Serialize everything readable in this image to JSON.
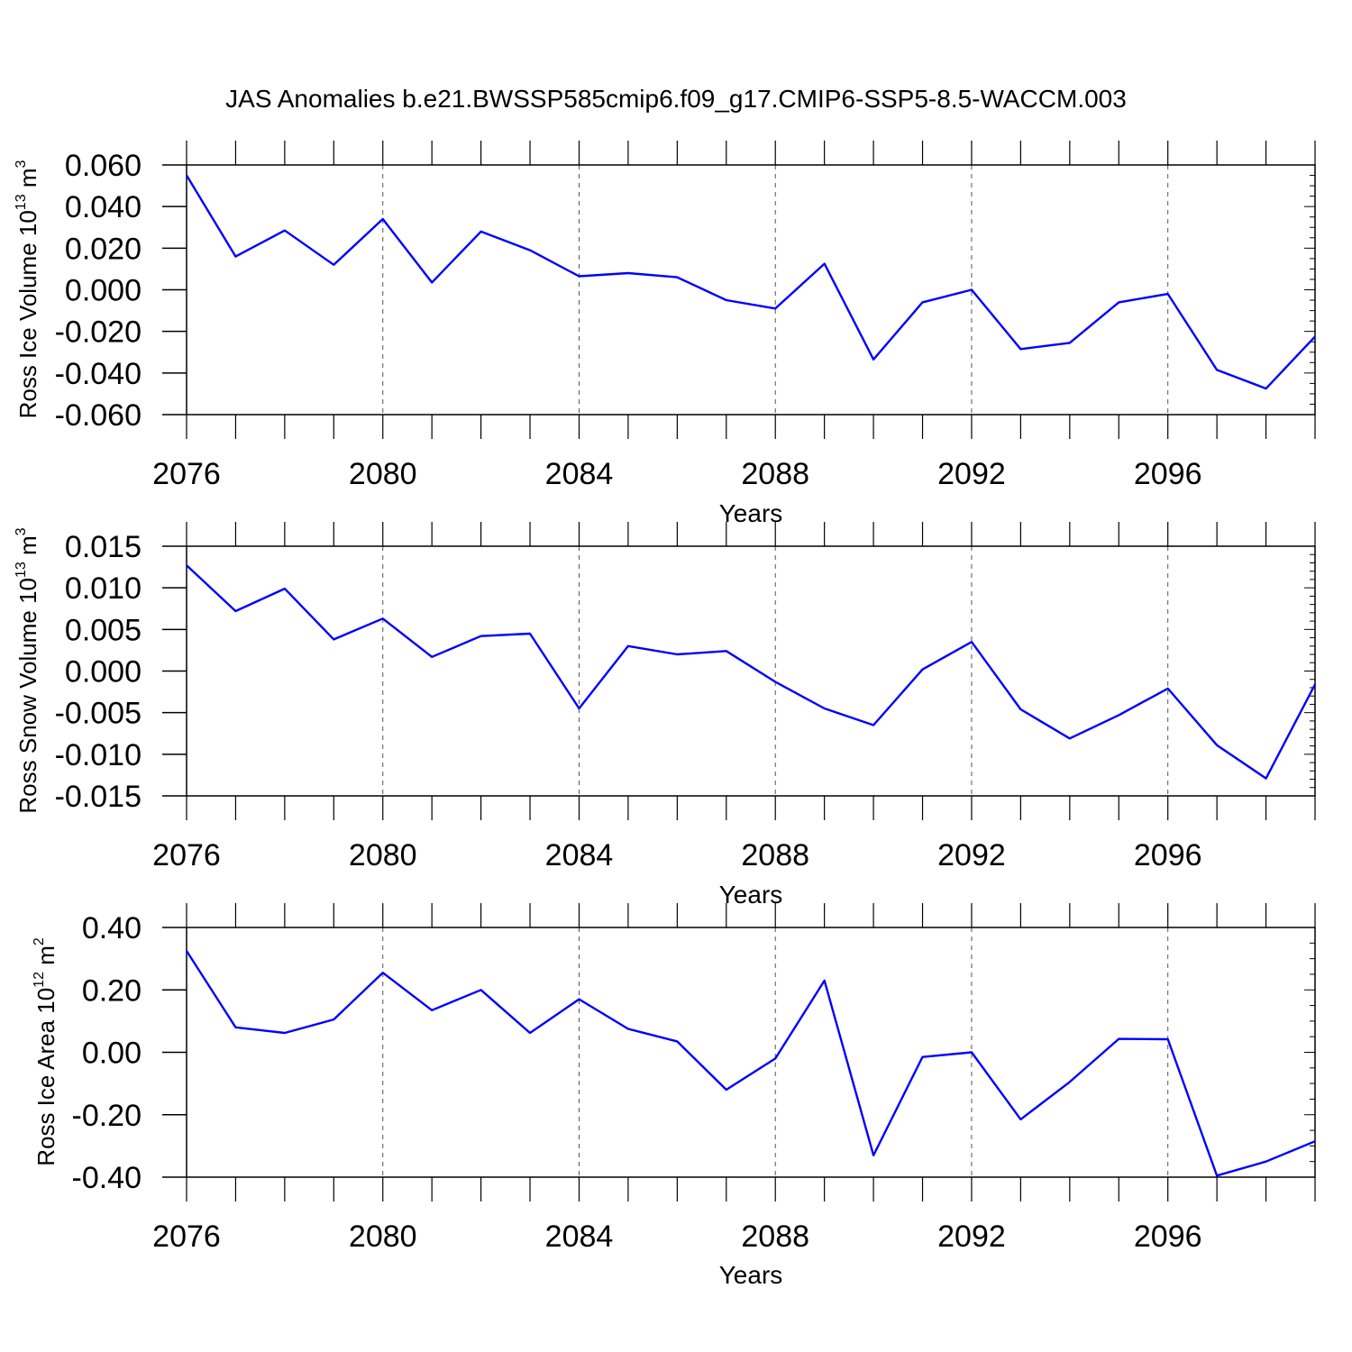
{
  "figure_title": "JAS Anomalies b.e21.BWSSP585cmip6.f09_g17.CMIP6-SSP5-8.5-WACCM.003",
  "colors": {
    "line": "#0000ff",
    "axis": "#000000",
    "grid": "#555555"
  },
  "chart_data": [
    {
      "type": "line",
      "title": "",
      "xlabel": "Years",
      "ylabel": "Ross Ice Volume 10",
      "ylabel_exp": "13",
      "ylabel_unit": "m",
      "ylabel_unit_exp": "3",
      "xlim": [
        2076,
        2099
      ],
      "ylim": [
        -0.06,
        0.06
      ],
      "x_ticks": [
        2076,
        2080,
        2084,
        2088,
        2092,
        2096
      ],
      "x_tick_labels": [
        "2076",
        "2080",
        "2084",
        "2088",
        "2092",
        "2096"
      ],
      "y_ticks": [
        0.06,
        0.04,
        0.02,
        0.0,
        -0.02,
        -0.04,
        -0.06
      ],
      "y_tick_labels": [
        "0.060",
        "0.040",
        "0.020",
        "0.000",
        "-0.020",
        "-0.040",
        "-0.060"
      ],
      "y_minor_step": 0.005,
      "grid": "vertical dashed at major x ticks",
      "x": [
        2076,
        2077,
        2078,
        2079,
        2080,
        2081,
        2082,
        2083,
        2084,
        2085,
        2086,
        2087,
        2088,
        2089,
        2090,
        2091,
        2092,
        2093,
        2094,
        2095,
        2096,
        2097,
        2098,
        2099
      ],
      "series": [
        {
          "name": "Ross Ice Volume",
          "values": [
            0.055,
            0.016,
            0.0285,
            0.012,
            0.034,
            0.0035,
            0.028,
            0.019,
            0.0065,
            0.008,
            0.006,
            -0.005,
            -0.009,
            0.0125,
            -0.0335,
            -0.006,
            0.0,
            -0.0285,
            -0.0255,
            -0.006,
            -0.002,
            -0.0385,
            -0.0475,
            -0.0225
          ]
        }
      ]
    },
    {
      "type": "line",
      "title": "",
      "xlabel": "Years",
      "ylabel": "Ross Snow Volume 10",
      "ylabel_exp": "13",
      "ylabel_unit": "m",
      "ylabel_unit_exp": "3",
      "xlim": [
        2076,
        2099
      ],
      "ylim": [
        -0.015,
        0.015
      ],
      "x_ticks": [
        2076,
        2080,
        2084,
        2088,
        2092,
        2096
      ],
      "x_tick_labels": [
        "2076",
        "2080",
        "2084",
        "2088",
        "2092",
        "2096"
      ],
      "y_ticks": [
        0.015,
        0.01,
        0.005,
        0.0,
        -0.005,
        -0.01,
        -0.015
      ],
      "y_tick_labels": [
        "0.015",
        "0.010",
        "0.005",
        "0.000",
        "-0.005",
        "-0.010",
        "-0.015"
      ],
      "y_minor_step": 0.001,
      "grid": "vertical dashed at major x ticks",
      "x": [
        2076,
        2077,
        2078,
        2079,
        2080,
        2081,
        2082,
        2083,
        2084,
        2085,
        2086,
        2087,
        2088,
        2089,
        2090,
        2091,
        2092,
        2093,
        2094,
        2095,
        2096,
        2097,
        2098,
        2099
      ],
      "series": [
        {
          "name": "Ross Snow Volume",
          "values": [
            0.0127,
            0.0072,
            0.0099,
            0.0038,
            0.0063,
            0.0017,
            0.0042,
            0.0045,
            -0.0045,
            0.003,
            0.002,
            0.0024,
            -0.0013,
            -0.0045,
            -0.0065,
            0.0002,
            0.0035,
            -0.0046,
            -0.0081,
            -0.0053,
            -0.0021,
            -0.0089,
            -0.0129,
            -0.0016
          ]
        }
      ]
    },
    {
      "type": "line",
      "title": "",
      "xlabel": "Years",
      "ylabel": "Ross Ice Area 10",
      "ylabel_exp": "12",
      "ylabel_unit": "m",
      "ylabel_unit_exp": "2",
      "xlim": [
        2076,
        2099
      ],
      "ylim": [
        -0.4,
        0.4
      ],
      "x_ticks": [
        2076,
        2080,
        2084,
        2088,
        2092,
        2096
      ],
      "x_tick_labels": [
        "2076",
        "2080",
        "2084",
        "2088",
        "2092",
        "2096"
      ],
      "y_ticks": [
        0.4,
        0.2,
        0.0,
        -0.2,
        -0.4
      ],
      "y_tick_labels": [
        "0.40",
        "0.20",
        "0.00",
        "-0.20",
        "-0.40"
      ],
      "y_minor_step": 0.05,
      "grid": "vertical dashed at major x ticks",
      "x": [
        2076,
        2077,
        2078,
        2079,
        2080,
        2081,
        2082,
        2083,
        2084,
        2085,
        2086,
        2087,
        2088,
        2089,
        2090,
        2091,
        2092,
        2093,
        2094,
        2095,
        2096,
        2097,
        2098,
        2099
      ],
      "series": [
        {
          "name": "Ross Ice Area",
          "values": [
            0.325,
            0.08,
            0.062,
            0.105,
            0.255,
            0.135,
            0.2,
            0.062,
            0.17,
            0.075,
            0.035,
            -0.12,
            -0.02,
            0.23,
            -0.33,
            -0.015,
            0.0,
            -0.215,
            -0.095,
            0.043,
            0.042,
            -0.395,
            -0.35,
            -0.285
          ]
        }
      ]
    }
  ]
}
